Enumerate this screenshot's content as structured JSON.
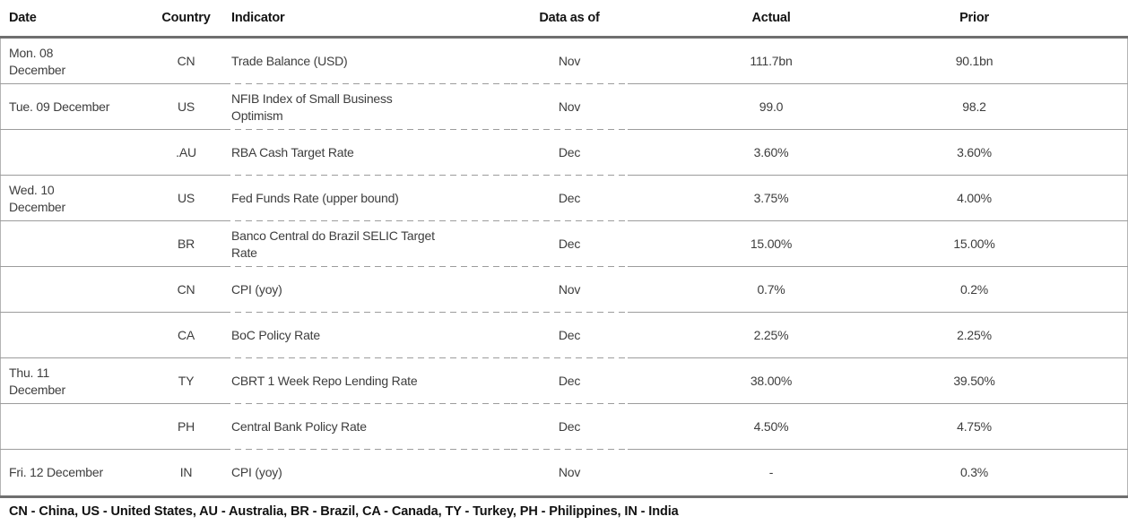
{
  "table": {
    "columns": [
      "Date",
      "Country",
      "Indicator",
      "Data as of",
      "Actual",
      "Prior"
    ],
    "rows": [
      {
        "date": "Mon. 08\nDecember",
        "country": "CN",
        "indicator": "Trade Balance (USD)",
        "data_as_of": "Nov",
        "actual": "111.7bn",
        "prior": "90.1bn"
      },
      {
        "date": "Tue. 09 December",
        "country": "US",
        "indicator": "NFIB Index of Small Business\nOptimism",
        "data_as_of": "Nov",
        "actual": "99.0",
        "prior": "98.2"
      },
      {
        "date": "",
        "country": ".AU",
        "indicator": "RBA Cash Target Rate",
        "data_as_of": "Dec",
        "actual": "3.60%",
        "prior": "3.60%"
      },
      {
        "date": "Wed. 10\nDecember",
        "country": "US",
        "indicator": "Fed Funds Rate (upper bound)",
        "data_as_of": "Dec",
        "actual": "3.75%",
        "prior": "4.00%"
      },
      {
        "date": "",
        "country": "BR",
        "indicator": "Banco Central do Brazil SELIC Target\nRate",
        "data_as_of": "Dec",
        "actual": "15.00%",
        "prior": "15.00%"
      },
      {
        "date": "",
        "country": "CN",
        "indicator": "CPI (yoy)",
        "data_as_of": "Nov",
        "actual": "0.7%",
        "prior": "0.2%"
      },
      {
        "date": "",
        "country": "CA",
        "indicator": "BoC Policy Rate",
        "data_as_of": "Dec",
        "actual": "2.25%",
        "prior": "2.25%"
      },
      {
        "date": "Thu. 11\nDecember",
        "country": "TY",
        "indicator": "CBRT 1 Week Repo Lending Rate",
        "data_as_of": "Dec",
        "actual": "38.00%",
        "prior": "39.50%"
      },
      {
        "date": "",
        "country": "PH",
        "indicator": "Central Bank Policy Rate",
        "data_as_of": "Dec",
        "actual": "4.50%",
        "prior": "4.75%"
      },
      {
        "date": "Fri. 12 December",
        "country": "IN",
        "indicator": "CPI (yoy)",
        "data_as_of": "Nov",
        "actual": "-",
        "prior": "0.3%"
      }
    ]
  },
  "footer": {
    "legend": "CN - China, US - United States, AU - Australia, BR - Brazil, CA - Canada, TY - Turkey, PH - Philippines, IN - India"
  },
  "colors": {
    "heavy_rule": "#6f6f6f",
    "light_rule": "#9c9c9c",
    "header_text": "#141414",
    "body_text": "#3d3d3d"
  }
}
